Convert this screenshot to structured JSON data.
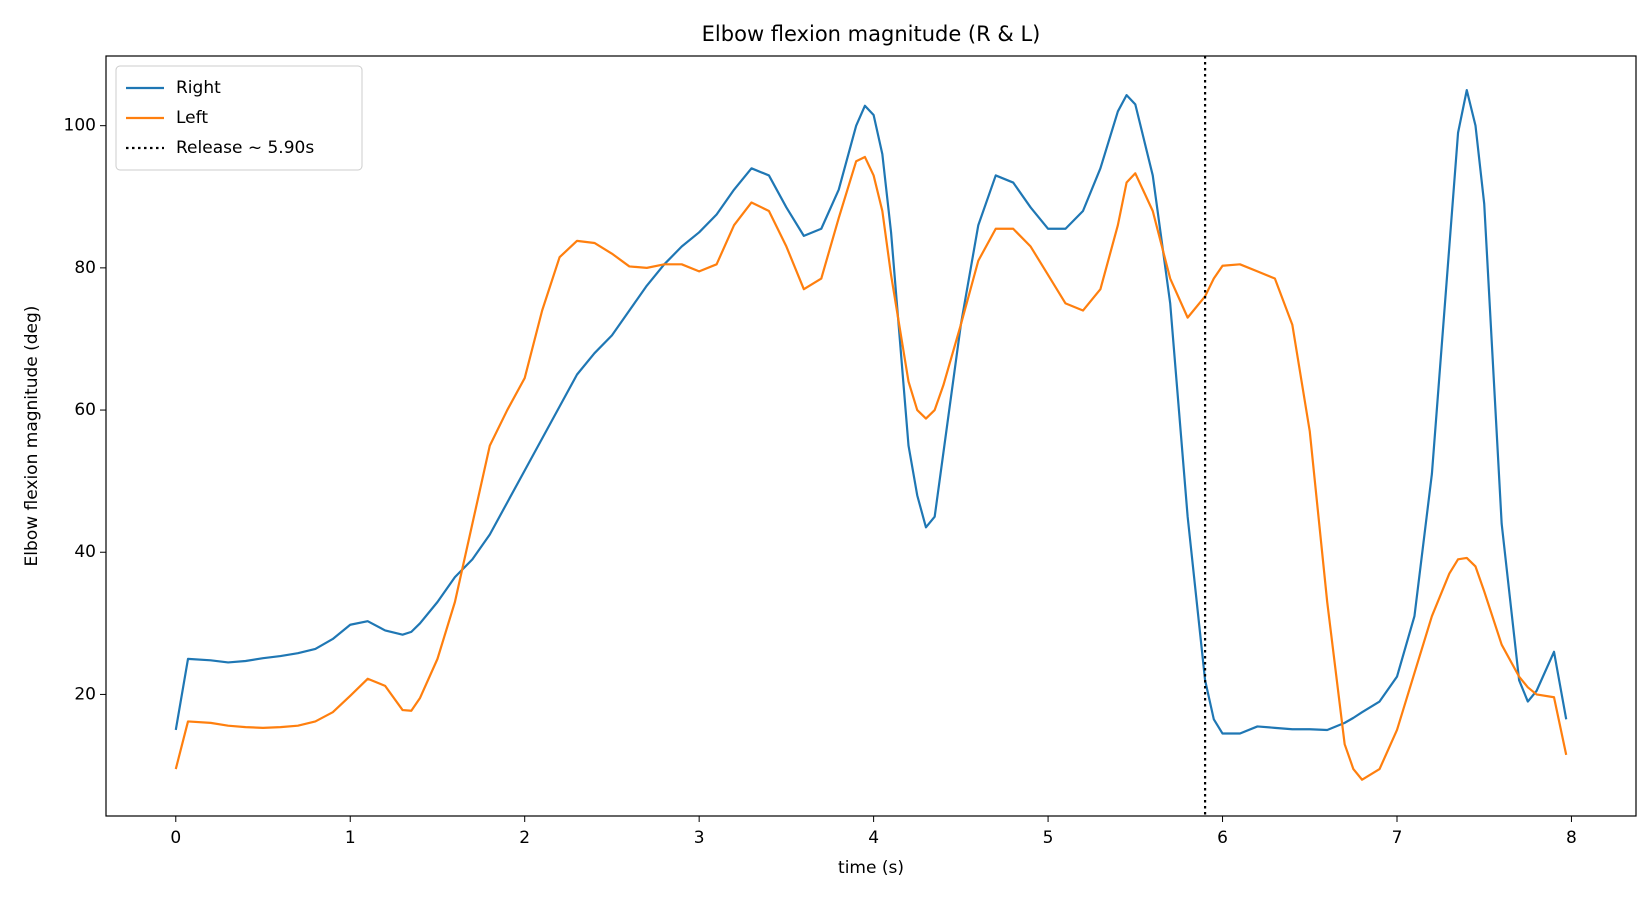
{
  "chart_data": {
    "type": "line",
    "title": "Elbow flexion magnitude (R & L)",
    "x_label": "time (s)",
    "y_label": "Elbow flexion magnitude (deg)",
    "x": [
      0,
      0.07,
      0.2,
      0.3,
      0.4,
      0.5,
      0.6,
      0.7,
      0.8,
      0.9,
      1.0,
      1.1,
      1.2,
      1.3,
      1.35,
      1.4,
      1.5,
      1.6,
      1.7,
      1.8,
      1.9,
      2.0,
      2.1,
      2.2,
      2.3,
      2.4,
      2.5,
      2.6,
      2.7,
      2.8,
      2.9,
      3.0,
      3.1,
      3.2,
      3.3,
      3.4,
      3.5,
      3.6,
      3.7,
      3.8,
      3.9,
      3.95,
      4.0,
      4.05,
      4.1,
      4.2,
      4.25,
      4.3,
      4.35,
      4.4,
      4.5,
      4.6,
      4.7,
      4.8,
      4.9,
      5.0,
      5.1,
      5.2,
      5.3,
      5.4,
      5.45,
      5.5,
      5.6,
      5.7,
      5.8,
      5.9,
      5.95,
      6.0,
      6.1,
      6.2,
      6.3,
      6.4,
      6.5,
      6.6,
      6.7,
      6.75,
      6.8,
      6.9,
      7.0,
      7.1,
      7.2,
      7.3,
      7.35,
      7.4,
      7.45,
      7.5,
      7.6,
      7.7,
      7.75,
      7.8,
      7.9,
      7.97
    ],
    "series": [
      {
        "name": "Right",
        "color": "#1f77b4",
        "values": [
          15,
          25,
          24.8,
          24.5,
          24.7,
          25.1,
          25.4,
          25.8,
          26.4,
          27.8,
          29.8,
          30.3,
          29.0,
          28.4,
          28.8,
          30,
          33,
          36.5,
          39,
          42.5,
          47,
          51.5,
          56,
          60.5,
          65,
          68,
          70.5,
          74,
          77.5,
          80.5,
          83,
          85,
          87.5,
          91,
          94,
          93,
          88.5,
          84.5,
          85.5,
          91,
          100,
          102.8,
          101.5,
          96,
          85,
          55,
          48,
          43.5,
          45,
          54,
          72,
          86,
          93,
          92,
          88.5,
          85.5,
          85.5,
          88,
          94,
          102,
          104.3,
          103,
          93,
          75,
          45,
          22,
          16.5,
          14.5,
          14.5,
          15.5,
          15.3,
          15.1,
          15.1,
          15.0,
          16.0,
          16.7,
          17.5,
          19,
          22.5,
          31,
          51,
          83,
          99,
          105,
          100,
          89,
          44,
          22,
          19,
          20.5,
          26,
          16.5
        ]
      },
      {
        "name": "Left",
        "color": "#ff7f0e",
        "values": [
          9.5,
          16.2,
          16,
          15.6,
          15.4,
          15.3,
          15.4,
          15.6,
          16.2,
          17.5,
          19.8,
          22.2,
          21.2,
          17.8,
          17.7,
          19.5,
          25,
          33,
          44,
          55,
          60,
          64.5,
          74,
          81.5,
          83.8,
          83.5,
          82,
          80.2,
          80,
          80.5,
          80.5,
          79.5,
          80.5,
          86,
          89.2,
          88,
          83,
          77,
          78.5,
          87,
          95,
          95.6,
          93,
          88,
          79,
          64,
          60,
          58.8,
          60,
          63.5,
          72,
          81,
          85.5,
          85.5,
          83,
          79,
          75,
          74,
          77,
          86,
          92,
          93.3,
          88,
          78.5,
          73,
          76,
          78.5,
          80.3,
          80.5,
          79.5,
          78.5,
          72,
          57,
          33,
          13,
          9.5,
          8,
          9.5,
          15,
          23,
          31,
          37,
          39,
          39.2,
          38,
          34.5,
          27,
          22.5,
          21,
          20,
          19.6,
          11.5
        ]
      }
    ],
    "vline": {
      "x": 5.9,
      "label": "Release ~ 5.90s",
      "color": "#000000"
    },
    "xlim": [
      -0.4,
      8.37
    ],
    "ylim": [
      2.9,
      109.8
    ],
    "xticks": [
      0,
      1,
      2,
      3,
      4,
      5,
      6,
      7,
      8
    ],
    "yticks": [
      20,
      40,
      60,
      80,
      100
    ],
    "grid": false,
    "legend": "upper left"
  }
}
